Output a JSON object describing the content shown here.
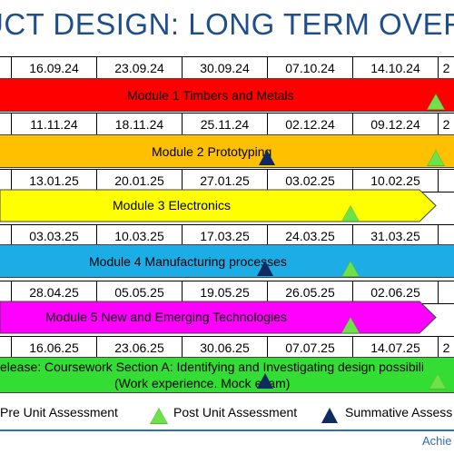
{
  "title": "UCT DESIGN: LONG TERM OVERVIE",
  "rows": [
    {
      "dates": [
        "16.09.24",
        "23.09.24",
        "30.09.24",
        "07.10.24",
        "14.10.24",
        "2"
      ],
      "band": {
        "label": "Module 1 Timbers and Metals",
        "color": "#ff0000"
      }
    },
    {
      "dates": [
        "11.11.24",
        "18.11.24",
        "25.11.24",
        "02.12.24",
        "09.12.24",
        "2"
      ],
      "band": {
        "label": "Module 2 Prototyping",
        "color": "#ffc000"
      }
    },
    {
      "dates": [
        "13.01.25",
        "20.01.25",
        "27.01.25",
        "03.02.25",
        "10.02.25",
        ""
      ],
      "band": {
        "label": "Module 3 Electronics",
        "color": "#ffff00"
      }
    },
    {
      "dates": [
        "03.03.25",
        "10.03.25",
        "17.03.25",
        "24.03.25",
        "31.03.25",
        ""
      ],
      "band": {
        "label": "Module 4 Manufacturing processes",
        "color": "#1cace6"
      }
    },
    {
      "dates": [
        "28.04.25",
        "05.05.25",
        "19.05.25",
        "26.05.25",
        "02.06.25",
        ""
      ],
      "band": {
        "label": "Module 5 New and Emerging Technologies",
        "color": "#ff00ff"
      }
    },
    {
      "dates": [
        "16.06.25",
        "23.06.25",
        "30.06.25",
        "07.07.25",
        "14.07.25",
        "2"
      ],
      "band": {
        "label": "elease: Coursework Section A: Identifying and Investigating design possibili",
        "label2": "(Work experience. Mock exam)",
        "color": "#33dd33"
      }
    }
  ],
  "legend": {
    "pre": "Pre Unit Assessment",
    "post": "Post Unit Assessment",
    "summative": "Summative Assess"
  },
  "footer": "Achie",
  "colors": {
    "title": "#1f4e8c",
    "post_marker": "#4cbb2e",
    "summative_marker": "#0f2a5e"
  }
}
